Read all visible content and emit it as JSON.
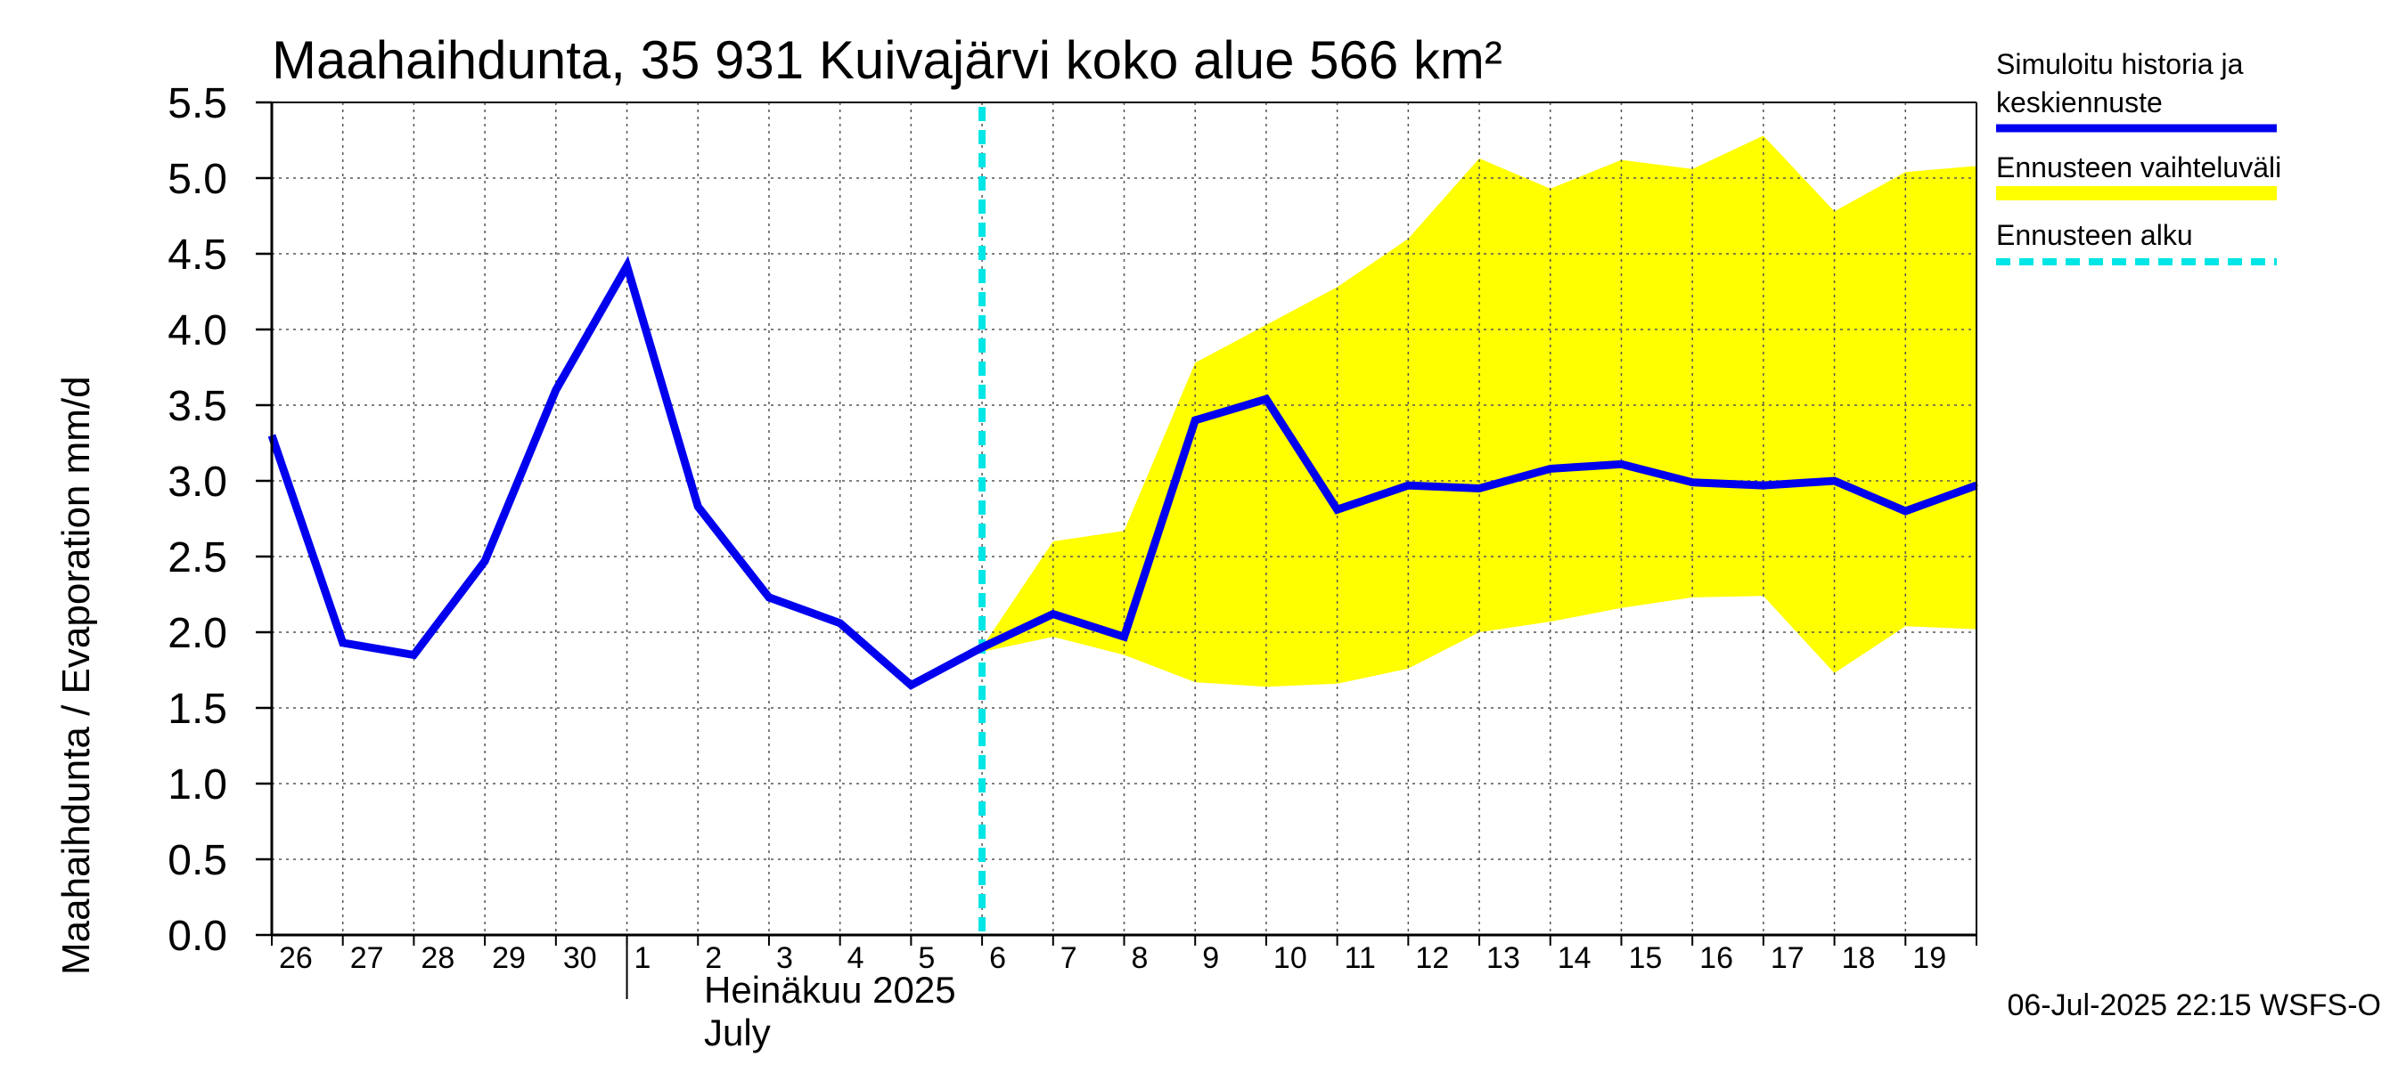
{
  "chart_data": {
    "type": "line",
    "title": "Maahaihdunta, 35 931 Kuivajärvi koko alue 566 km²",
    "ylabel": "Maahaihdunta / Evaporation   mm/d",
    "ylim": [
      0,
      5.5
    ],
    "y_ticks": [
      "0.0",
      "0.5",
      "1.0",
      "1.5",
      "2.0",
      "2.5",
      "3.0",
      "3.5",
      "4.0",
      "4.5",
      "5.0",
      "5.5"
    ],
    "x_tick_labels": [
      "26",
      "27",
      "28",
      "29",
      "30",
      "1",
      "2",
      "3",
      "4",
      "5",
      "6",
      "7",
      "8",
      "9",
      "10",
      "11",
      "12",
      "13",
      "14",
      "15",
      "16",
      "17",
      "18",
      "19"
    ],
    "month_label_fi": "Heinäkuu  2025",
    "month_label_en": "July",
    "grid": true,
    "legend_position": "right",
    "series": [
      {
        "name": "Simuloitu historia ja keskiennuste",
        "legend_line1": "Simuloitu historia ja",
        "legend_line2": "keskiennuste",
        "color": "#0000ee",
        "x": [
          "2025-06-26",
          "2025-06-27",
          "2025-06-28",
          "2025-06-29",
          "2025-06-30",
          "2025-07-01",
          "2025-07-02",
          "2025-07-03",
          "2025-07-04",
          "2025-07-05",
          "2025-07-06",
          "2025-07-07",
          "2025-07-08",
          "2025-07-09",
          "2025-07-10",
          "2025-07-11",
          "2025-07-12",
          "2025-07-13",
          "2025-07-14",
          "2025-07-15",
          "2025-07-16",
          "2025-07-17",
          "2025-07-18",
          "2025-07-19",
          "2025-07-20"
        ],
        "values": [
          3.3,
          1.93,
          1.85,
          2.47,
          3.6,
          4.42,
          2.83,
          2.23,
          2.06,
          1.65,
          1.9,
          2.12,
          1.97,
          3.4,
          3.54,
          2.81,
          2.97,
          2.95,
          3.08,
          3.11,
          2.99,
          2.97,
          3.0,
          2.8,
          2.97
        ]
      },
      {
        "name": "Ennusteen vaihteluväli",
        "color": "#ffff00",
        "x": [
          "2025-07-06",
          "2025-07-07",
          "2025-07-08",
          "2025-07-09",
          "2025-07-10",
          "2025-07-11",
          "2025-07-12",
          "2025-07-13",
          "2025-07-14",
          "2025-07-15",
          "2025-07-16",
          "2025-07-17",
          "2025-07-18",
          "2025-07-19",
          "2025-07-20"
        ],
        "upper": [
          1.9,
          2.6,
          2.67,
          3.78,
          4.03,
          4.28,
          4.6,
          5.13,
          4.93,
          5.12,
          5.06,
          5.28,
          4.78,
          5.04,
          5.08
        ],
        "lower": [
          1.87,
          1.97,
          1.85,
          1.67,
          1.64,
          1.66,
          1.76,
          2.0,
          2.07,
          2.16,
          2.23,
          2.24,
          1.73,
          2.04,
          2.02
        ]
      },
      {
        "name": "Ennusteen alku",
        "color": "#00e5e5",
        "x": "2025-07-06"
      }
    ]
  },
  "footer": "06-Jul-2025 22:15 WSFS-O"
}
